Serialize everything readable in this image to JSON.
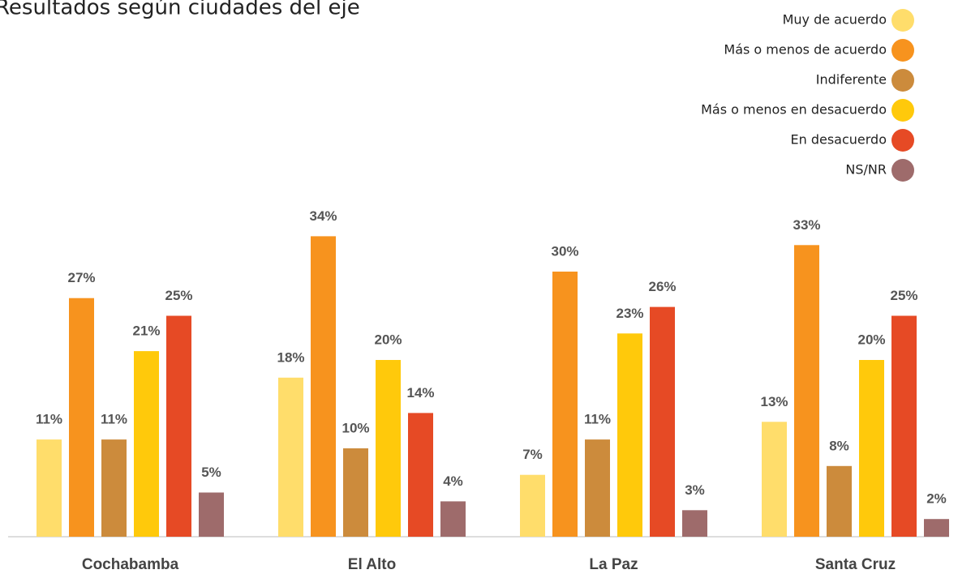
{
  "chart_data": {
    "type": "bar",
    "title": "Resultados según ciudades del eje",
    "categories": [
      "Cochabamba",
      "El Alto",
      "La Paz",
      "Santa Cruz"
    ],
    "series": [
      {
        "name": "Muy de acuerdo",
        "color": "#ffdd6b",
        "values": [
          11,
          18,
          7,
          13
        ],
        "value_labels": [
          "11%",
          "18%",
          "7%",
          "13%"
        ]
      },
      {
        "name": "Más o menos de acuerdo",
        "color": "#f7931e",
        "values": [
          27,
          34,
          30,
          33
        ],
        "value_labels": [
          "27%",
          "34%",
          "30%",
          "33%"
        ]
      },
      {
        "name": "Indiferente",
        "color": "#cc8b3c",
        "values": [
          11,
          10,
          11,
          8
        ],
        "value_labels": [
          "11%",
          "10%",
          "11%",
          "8%"
        ]
      },
      {
        "name": "Más o menos en desacuerdo",
        "color": "#ffc90b",
        "values": [
          21,
          20,
          23,
          20
        ],
        "value_labels": [
          "21%",
          "20%",
          "23%",
          "20%"
        ]
      },
      {
        "name": "En desacuerdo",
        "color": "#e64a25",
        "values": [
          25,
          14,
          26,
          25
        ],
        "value_labels": [
          "25%",
          "14%",
          "26%",
          "25%"
        ]
      },
      {
        "name": "NS/NR",
        "color": "#9e6b6b",
        "values": [
          5,
          4,
          3,
          2
        ],
        "value_labels": [
          "5%",
          "4%",
          "3%",
          "2%"
        ]
      }
    ]
  }
}
